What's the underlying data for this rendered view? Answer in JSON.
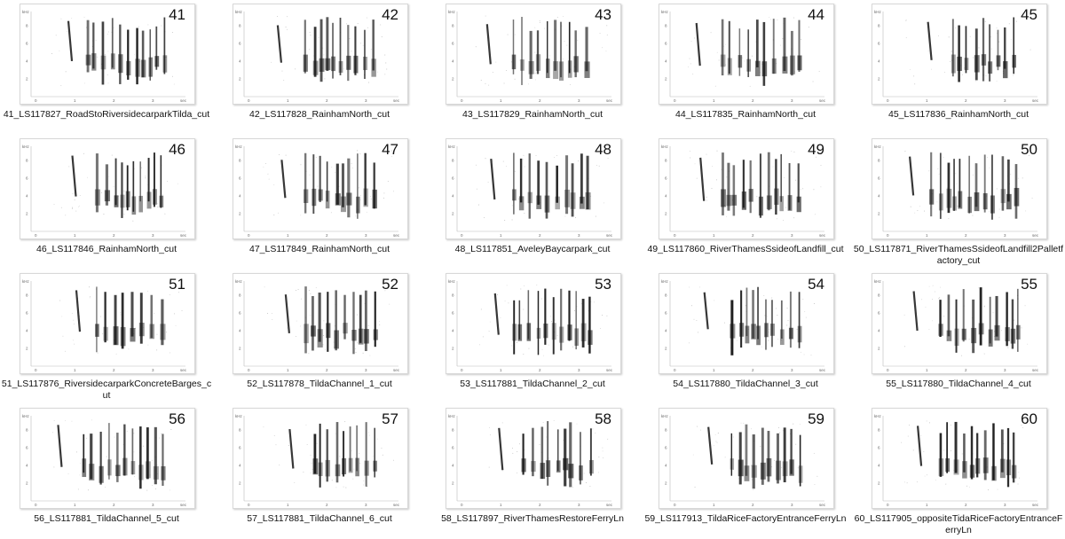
{
  "file_view": {
    "items": [
      {
        "number": "41",
        "filename": "41_LS117827_RoadStoRiversidecarparkTilda_cut"
      },
      {
        "number": "42",
        "filename": "42_LS117828_RainhamNorth_cut"
      },
      {
        "number": "43",
        "filename": "43_LS117829_RainhamNorth_cut"
      },
      {
        "number": "44",
        "filename": "44_LS117835_RainhamNorth_cut"
      },
      {
        "number": "45",
        "filename": "45_LS117836_RainhamNorth_cut"
      },
      {
        "number": "46",
        "filename": "46_LS117846_RainhamNorth_cut"
      },
      {
        "number": "47",
        "filename": "47_LS117849_RainhamNorth_cut"
      },
      {
        "number": "48",
        "filename": "48_LS117851_AveleyBaycarpark_cut"
      },
      {
        "number": "49",
        "filename": "49_LS117860_RiverThamesSsideofLandfill_cut"
      },
      {
        "number": "50",
        "filename": "50_LS117871_RiverThamesSsideofLandfill2Palletfactory_cut"
      },
      {
        "number": "51",
        "filename": "51_LS117876_RiversidecarparkConcreteBarges_cut"
      },
      {
        "number": "52",
        "filename": "52_LS117878_TildaChannel_1_cut"
      },
      {
        "number": "53",
        "filename": "53_LS117881_TildaChannel_2_cut"
      },
      {
        "number": "54",
        "filename": "54_LS117880_TildaChannel_3_cut"
      },
      {
        "number": "55",
        "filename": "55_LS117880_TildaChannel_4_cut"
      },
      {
        "number": "56",
        "filename": "56_LS117881_TildaChannel_5_cut"
      },
      {
        "number": "57",
        "filename": "57_LS117881_TildaChannel_6_cut"
      },
      {
        "number": "58",
        "filename": "58_LS117897_RiverThamesRestoreFerryLn"
      },
      {
        "number": "59",
        "filename": "59_LS117913_TildaRiceFactoryEntranceFerryLn"
      },
      {
        "number": "60",
        "filename": "60_LS117905_oppositeTidaRiceFactoryEntranceFerryLn"
      }
    ]
  },
  "spectrogram": {
    "y_unit": "kHz",
    "x_unit": "sec",
    "y_ticks": [
      "2",
      "4",
      "6",
      "8"
    ],
    "x_ticks": [
      "0",
      "1",
      "2",
      "3"
    ],
    "ink_color": "#141414"
  }
}
